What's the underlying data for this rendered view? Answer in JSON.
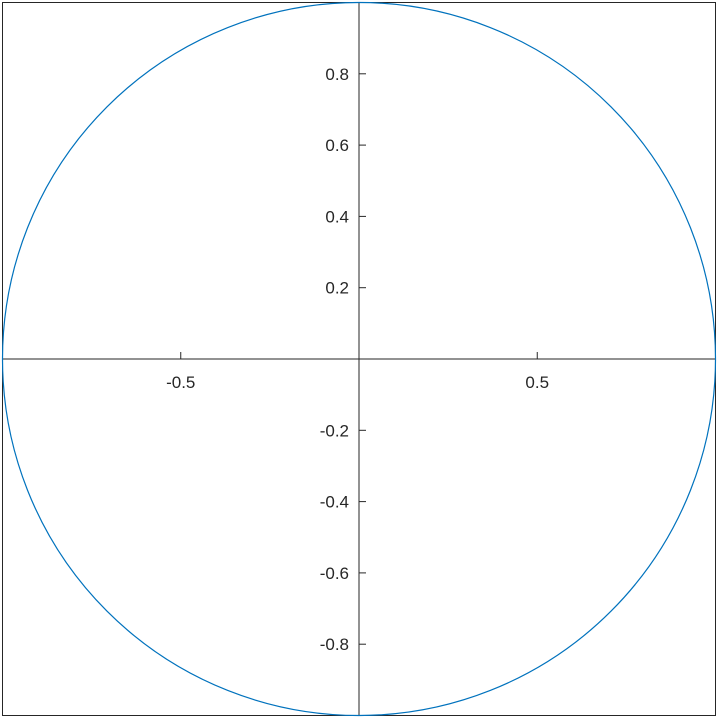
{
  "chart_data": {
    "type": "line",
    "title": "",
    "xlabel": "",
    "ylabel": "",
    "xlim": [
      -1,
      1
    ],
    "ylim": [
      -1,
      1
    ],
    "grid": false,
    "axes_location": "origin",
    "x_ticks": [
      -0.5,
      0.5
    ],
    "x_tick_labels": [
      "-0.5",
      "0.5"
    ],
    "y_ticks": [
      0.8,
      0.6,
      0.4,
      0.2,
      -0.2,
      -0.4,
      -0.6,
      -0.8
    ],
    "y_tick_labels": [
      "0.8",
      "0.6",
      "0.4",
      "0.2",
      "-0.2",
      "-0.4",
      "-0.6",
      "-0.8"
    ],
    "series": [
      {
        "curve": "circle",
        "center": [
          0,
          0
        ],
        "radius": 1,
        "color": "#0072BD"
      }
    ]
  }
}
